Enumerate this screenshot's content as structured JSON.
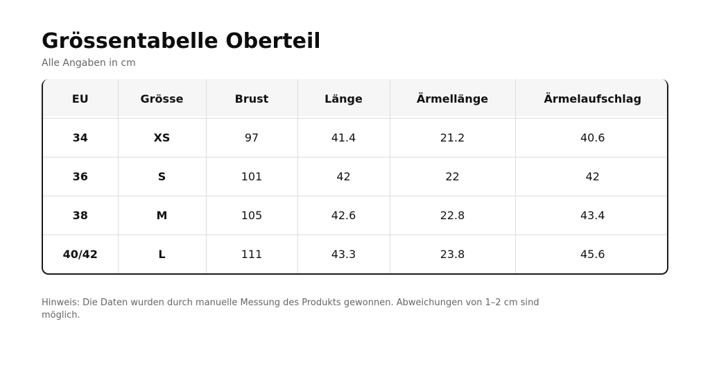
{
  "title": "Grössentabelle Oberteil",
  "subtitle": "Alle Angaben in cm",
  "table": {
    "headers": [
      "EU",
      "Grösse",
      "Brust",
      "Länge",
      "Ärmellänge",
      "Ärmelaufschlag"
    ],
    "rows": [
      [
        "34",
        "XS",
        "97",
        "41.4",
        "21.2",
        "40.6"
      ],
      [
        "36",
        "S",
        "101",
        "42",
        "22",
        "42"
      ],
      [
        "38",
        "M",
        "105",
        "42.6",
        "22.8",
        "43.4"
      ],
      [
        "40/42",
        "L",
        "111",
        "43.3",
        "23.8",
        "45.6"
      ]
    ]
  },
  "note": "Hinweis: Die Daten wurden durch manuelle Messung des Produkts gewonnen. Abweichungen von 1–2 cm sind möglich."
}
